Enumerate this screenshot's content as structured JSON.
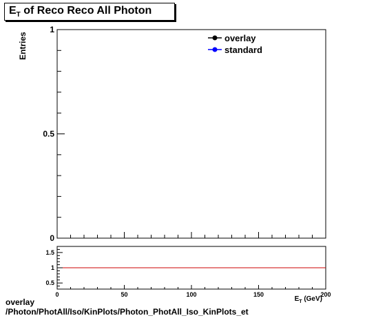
{
  "title": {
    "main": "E",
    "sub": "T",
    "rest": " of Reco Reco All Photon"
  },
  "chart_data": [
    {
      "type": "line",
      "panel": "main",
      "ylabel": "Entries",
      "xlim": [
        0,
        200
      ],
      "ylim": [
        0,
        1
      ],
      "yticks": [
        "0",
        "0.5",
        "1"
      ],
      "series": [
        {
          "name": "overlay",
          "color": "#000000",
          "values": []
        },
        {
          "name": "standard",
          "color": "#0000ff",
          "values": []
        }
      ],
      "legend": "top-right"
    },
    {
      "type": "line",
      "panel": "ratio",
      "xlabel": "E_T (GeV)",
      "xlim": [
        0,
        200
      ],
      "ylim": [
        0.3,
        1.7
      ],
      "xticks": [
        "0",
        "50",
        "100",
        "150",
        "200"
      ],
      "yticks": [
        "0.5",
        "1",
        "1.5"
      ],
      "reference_line": {
        "y": 1,
        "color": "#cc0000"
      }
    }
  ],
  "footer": {
    "line1": "overlay",
    "line2": "/Photon/PhotAll/Iso/KinPlots/Photon_PhotAll_Iso_KinPlots_et"
  }
}
